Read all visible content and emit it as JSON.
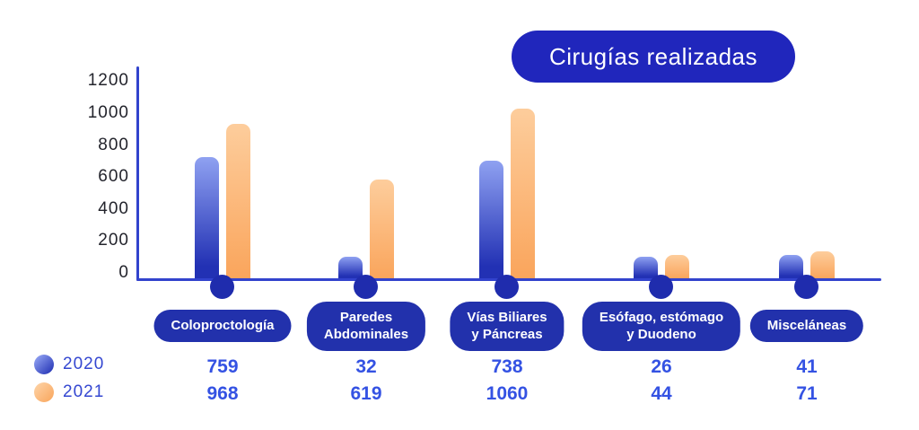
{
  "title": "Cirugías realizadas",
  "chart_data": {
    "type": "bar",
    "title": "Cirugías realizadas",
    "categories": [
      "Coloproctología",
      "Paredes\nAbdominales",
      "Vías Biliares\ny Páncreas",
      "Esófago, estómago\ny Duodeno",
      "Misceláneas"
    ],
    "series": [
      {
        "name": "2020",
        "values": [
          759,
          32,
          738,
          26,
          41
        ]
      },
      {
        "name": "2021",
        "values": [
          968,
          619,
          1060,
          44,
          71
        ]
      }
    ],
    "ylim": [
      0,
      1200
    ],
    "yticks": [
      0,
      200,
      400,
      600,
      800,
      1000,
      1200
    ],
    "grid": false,
    "xlabel": "",
    "ylabel": "",
    "legend_position": "bottom-left"
  },
  "colors": {
    "title_pill": "#2026BC",
    "category_pill": "#2231AC",
    "axis": "#3243CD",
    "axis_dot": "#1F2CAD",
    "bar_2020_top": "#8FA1F1",
    "bar_2020_bottom": "#2231B4",
    "bar_2021_top": "#FDCD9C",
    "bar_2021_bottom": "#FAA55C",
    "value_text": "#3452E3",
    "tick_text": "#23242C",
    "legend_text": "#3447D1"
  }
}
